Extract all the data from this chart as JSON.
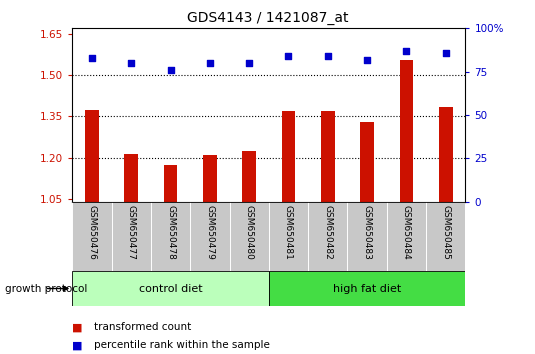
{
  "title": "GDS4143 / 1421087_at",
  "samples": [
    "GSM650476",
    "GSM650477",
    "GSM650478",
    "GSM650479",
    "GSM650480",
    "GSM650481",
    "GSM650482",
    "GSM650483",
    "GSM650484",
    "GSM650485"
  ],
  "transformed_count": [
    1.375,
    1.215,
    1.175,
    1.21,
    1.225,
    1.37,
    1.37,
    1.33,
    1.555,
    1.385
  ],
  "percentile_rank": [
    83,
    80,
    76,
    80,
    80,
    84,
    84,
    82,
    87,
    86
  ],
  "groups": [
    {
      "label": "control diet",
      "start": 0,
      "end": 5,
      "color": "#bbffbb"
    },
    {
      "label": "high fat diet",
      "start": 5,
      "end": 10,
      "color": "#44dd44"
    }
  ],
  "group_protocol_label": "growth protocol",
  "bar_color": "#cc1100",
  "dot_color": "#0000cc",
  "ylim_left": [
    1.04,
    1.67
  ],
  "ylim_right": [
    0,
    100
  ],
  "yticks_left": [
    1.05,
    1.2,
    1.35,
    1.5,
    1.65
  ],
  "yticks_right": [
    0,
    25,
    50,
    75,
    100
  ],
  "ytick_labels_left": [
    "1.05",
    "1.20",
    "1.35",
    "1.50",
    "1.65"
  ],
  "ytick_labels_right": [
    "0",
    "25",
    "50",
    "75",
    "100%"
  ],
  "dotted_lines": [
    1.2,
    1.35,
    1.5
  ],
  "legend_red_label": "transformed count",
  "legend_blue_label": "percentile rank within the sample",
  "bg_plot": "#ffffff",
  "bg_tick_area": "#c8c8c8"
}
